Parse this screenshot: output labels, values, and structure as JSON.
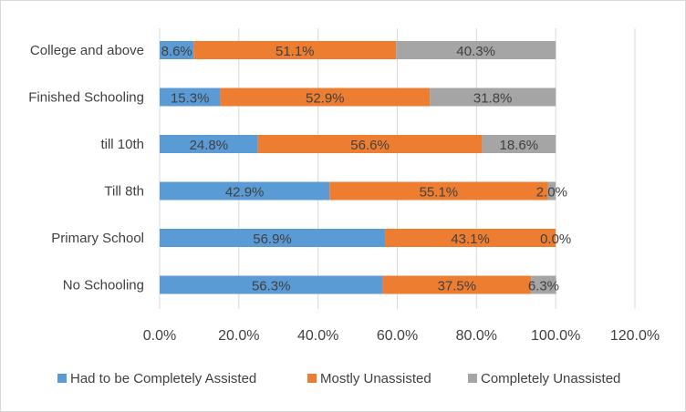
{
  "chart_data": {
    "type": "bar",
    "orientation": "horizontal",
    "stacked": true,
    "categories": [
      "College and above",
      "Finished Schooling",
      "till 10th",
      "Till 8th",
      "Primary School",
      "No Schooling"
    ],
    "series": [
      {
        "name": "Had to be Completely Assisted",
        "color": "#5b9bd5",
        "values": [
          8.6,
          15.3,
          24.8,
          42.9,
          56.9,
          56.3
        ],
        "labels": [
          "8.6%",
          "15.3%",
          "24.8%",
          "42.9%",
          "56.9%",
          "56.3%"
        ]
      },
      {
        "name": "Mostly Unassisted",
        "color": "#ed7d31",
        "values": [
          51.1,
          52.9,
          56.6,
          55.1,
          43.1,
          37.5
        ],
        "labels": [
          "51.1%",
          "52.9%",
          "56.6%",
          "55.1%",
          "43.1%",
          "37.5%"
        ]
      },
      {
        "name": "Completely Unassisted",
        "color": "#a5a5a5",
        "values": [
          40.3,
          31.8,
          18.6,
          2.0,
          0.0,
          6.3
        ],
        "labels": [
          "40.3%",
          "31.8%",
          "18.6%",
          "2.0%",
          "0.0%",
          "6.3%"
        ]
      }
    ],
    "xlim": [
      0,
      120
    ],
    "xticks": [
      0,
      20,
      40,
      60,
      80,
      100,
      120
    ],
    "xtick_labels": [
      "0.0%",
      "20.0%",
      "40.0%",
      "60.0%",
      "80.0%",
      "100.0%",
      "120.0%"
    ],
    "grid": true,
    "legend_position": "bottom"
  }
}
